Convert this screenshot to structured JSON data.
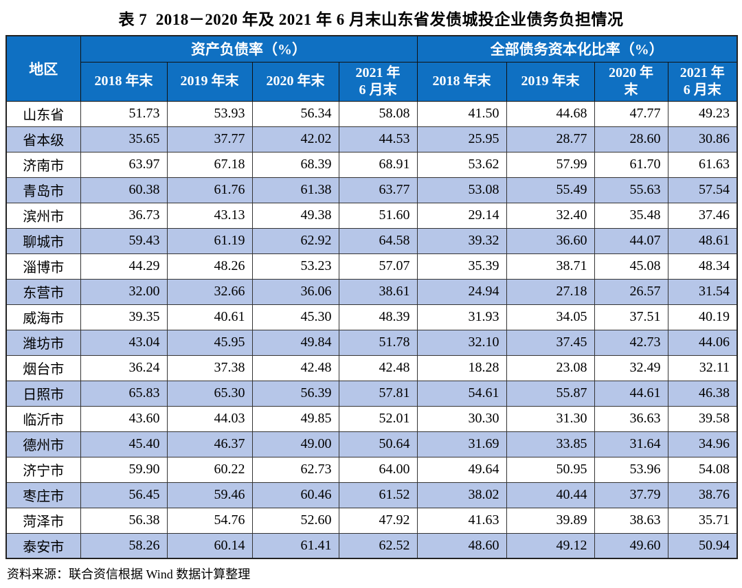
{
  "title": "表 7  2018－2020 年及 2021 年 6 月末山东省发债城投企业债务负担情况",
  "source": "资料来源：联合资信根据 Wind 数据计算整理",
  "colors": {
    "header_bg": "#0f70c2",
    "stripe_bg": "#b6c6e8",
    "header_text": "#ffffff",
    "border": "#222222"
  },
  "table": {
    "corner_header": "地区",
    "groups": [
      {
        "label": "资产负债率（%）",
        "cols": [
          "2018 年末",
          "2019 年末",
          "2020 年末",
          "2021 年\n6 月末"
        ]
      },
      {
        "label": "全部债务资本化比率（%）",
        "cols": [
          "2018 年末",
          "2019 年末",
          "2020 年\n末",
          "2021 年\n6 月末"
        ]
      }
    ],
    "rows": [
      {
        "region": "山东省",
        "values": [
          "51.73",
          "53.93",
          "56.34",
          "58.08",
          "41.50",
          "44.68",
          "47.77",
          "49.23"
        ]
      },
      {
        "region": "省本级",
        "values": [
          "35.65",
          "37.77",
          "42.02",
          "44.53",
          "25.95",
          "28.77",
          "28.60",
          "30.86"
        ]
      },
      {
        "region": "济南市",
        "values": [
          "63.97",
          "67.18",
          "68.39",
          "68.91",
          "53.62",
          "57.99",
          "61.70",
          "61.63"
        ]
      },
      {
        "region": "青岛市",
        "values": [
          "60.38",
          "61.76",
          "61.38",
          "63.77",
          "53.08",
          "55.49",
          "55.63",
          "57.54"
        ]
      },
      {
        "region": "滨州市",
        "values": [
          "36.73",
          "43.13",
          "49.38",
          "51.60",
          "29.14",
          "32.40",
          "35.48",
          "37.46"
        ]
      },
      {
        "region": "聊城市",
        "values": [
          "59.43",
          "61.19",
          "62.92",
          "64.58",
          "39.32",
          "36.60",
          "44.07",
          "48.61"
        ]
      },
      {
        "region": "淄博市",
        "values": [
          "44.29",
          "48.26",
          "53.23",
          "57.07",
          "35.39",
          "38.71",
          "45.08",
          "48.34"
        ]
      },
      {
        "region": "东营市",
        "values": [
          "32.00",
          "32.66",
          "36.06",
          "38.61",
          "24.94",
          "27.18",
          "26.57",
          "31.54"
        ]
      },
      {
        "region": "威海市",
        "values": [
          "39.35",
          "40.61",
          "45.30",
          "48.39",
          "31.93",
          "34.05",
          "37.51",
          "40.19"
        ]
      },
      {
        "region": "潍坊市",
        "values": [
          "43.04",
          "45.95",
          "49.84",
          "51.78",
          "32.10",
          "37.45",
          "42.73",
          "44.06"
        ]
      },
      {
        "region": "烟台市",
        "values": [
          "36.24",
          "37.38",
          "42.48",
          "42.48",
          "18.28",
          "23.08",
          "32.49",
          "32.11"
        ]
      },
      {
        "region": "日照市",
        "values": [
          "65.83",
          "65.30",
          "56.39",
          "57.81",
          "54.61",
          "55.87",
          "44.61",
          "46.38"
        ]
      },
      {
        "region": "临沂市",
        "values": [
          "43.60",
          "44.03",
          "49.85",
          "52.01",
          "30.30",
          "31.30",
          "36.63",
          "39.58"
        ]
      },
      {
        "region": "德州市",
        "values": [
          "45.40",
          "46.37",
          "49.00",
          "50.64",
          "31.69",
          "33.85",
          "31.64",
          "34.96"
        ]
      },
      {
        "region": "济宁市",
        "values": [
          "59.90",
          "60.22",
          "62.73",
          "64.00",
          "49.64",
          "50.95",
          "53.96",
          "54.08"
        ]
      },
      {
        "region": "枣庄市",
        "values": [
          "56.45",
          "59.46",
          "60.46",
          "61.52",
          "38.02",
          "40.44",
          "37.79",
          "38.76"
        ]
      },
      {
        "region": "菏泽市",
        "values": [
          "56.38",
          "54.76",
          "52.60",
          "47.92",
          "41.63",
          "39.89",
          "38.63",
          "35.71"
        ]
      },
      {
        "region": "泰安市",
        "values": [
          "58.26",
          "60.14",
          "61.41",
          "62.52",
          "48.60",
          "49.12",
          "49.60",
          "50.94"
        ]
      }
    ]
  }
}
